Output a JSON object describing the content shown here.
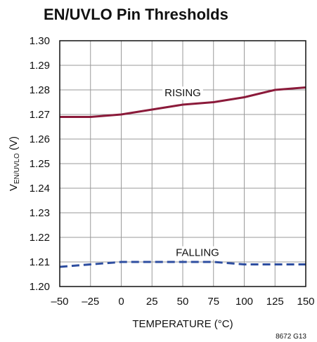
{
  "chart_data": {
    "type": "line",
    "title": "EN/UVLO Pin Thresholds",
    "xlabel": "TEMPERATURE (°C)",
    "ylabel": {
      "main": "V",
      "subscript": "EN/UVLO",
      "suffix": " (V)"
    },
    "xlim": [
      -50,
      150
    ],
    "ylim": [
      1.2,
      1.3
    ],
    "xticks": [
      -50,
      -25,
      0,
      25,
      50,
      75,
      100,
      125,
      150
    ],
    "xtick_labels": [
      "–50",
      "–25",
      "0",
      "25",
      "50",
      "75",
      "100",
      "125",
      "150"
    ],
    "yticks": [
      1.2,
      1.21,
      1.22,
      1.23,
      1.24,
      1.25,
      1.26,
      1.27,
      1.28,
      1.29,
      1.3
    ],
    "ytick_labels": [
      "1.20",
      "1.21",
      "1.22",
      "1.23",
      "1.24",
      "1.25",
      "1.26",
      "1.27",
      "1.28",
      "1.29",
      "1.30"
    ],
    "grid": true,
    "series": [
      {
        "name": "RISING",
        "color": "#8b1a3a",
        "style": "solid",
        "x": [
          -50,
          -25,
          0,
          25,
          50,
          75,
          100,
          125,
          150
        ],
        "y": [
          1.269,
          1.269,
          1.27,
          1.272,
          1.274,
          1.275,
          1.277,
          1.28,
          1.281
        ]
      },
      {
        "name": "FALLING",
        "color": "#2e4ea0",
        "style": "dashed",
        "x": [
          -50,
          -25,
          0,
          25,
          50,
          75,
          100,
          125,
          150
        ],
        "y": [
          1.208,
          1.209,
          1.21,
          1.21,
          1.21,
          1.21,
          1.209,
          1.209,
          1.209
        ]
      }
    ],
    "annotations": [
      {
        "text": "RISING",
        "x": 50,
        "y": 1.2785
      },
      {
        "text": "FALLING",
        "x": 62,
        "y": 1.2135
      }
    ],
    "figure_id": "8672 G13"
  }
}
